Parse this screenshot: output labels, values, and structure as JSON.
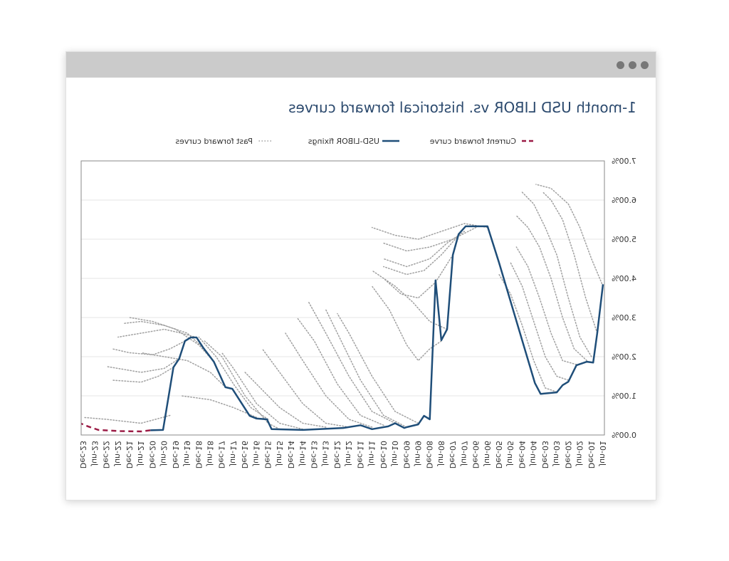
{
  "window": {
    "controls": [
      "close",
      "minimize",
      "maximize"
    ]
  },
  "chart_data": {
    "type": "line",
    "title": "1-month USD LIBOR vs. historical forward curves",
    "xlabel": "",
    "ylabel": "",
    "orientation": "mirrored-horizontally",
    "categories": [
      "Jun-01",
      "Dec-01",
      "Jun-02",
      "Dec-02",
      "Jun-03",
      "Dec-03",
      "Jun-04",
      "Dec-04",
      "Jun-05",
      "Dec-05",
      "Jun-06",
      "Dec-06",
      "Jun-07",
      "Dec-07",
      "Jun-08",
      "Dec-08",
      "Jun-09",
      "Dec-09",
      "Jun-10",
      "Dec-10",
      "Jun-11",
      "Dec-11",
      "Jun-12",
      "Dec-12",
      "Jun-13",
      "Dec-13",
      "Jun-14",
      "Dec-14",
      "Jun-15",
      "Dec-15",
      "Jun-16",
      "Dec-16",
      "Jun-17",
      "Dec-17",
      "Jun-18",
      "Dec-18",
      "Jun-19",
      "Dec-19",
      "Jun-20",
      "Dec-20",
      "Jun-21",
      "Dec-21",
      "Jun-22",
      "Dec-22",
      "Jun-23",
      "Dec-23"
    ],
    "y_ticks": [
      "0.00%",
      "1.00%",
      "2.00%",
      "3.00%",
      "4.00%",
      "5.00%",
      "6.00%",
      "7.00%"
    ],
    "ylim": [
      0,
      7
    ],
    "grid": true,
    "legend_position": "top",
    "legend": [
      "Past forward curves",
      "USD-LIBOR fixings",
      "Current forward curve"
    ],
    "colors": {
      "past": "#a0a0a0",
      "libor": "#1f4e79",
      "current": "#9b1b45"
    },
    "x_unit": "half-year index from Jun-01",
    "libor": [
      [
        0,
        3.85
      ],
      [
        0.5,
        2.6
      ],
      [
        0.85,
        1.85
      ],
      [
        1.4,
        1.87
      ],
      [
        2.3,
        1.78
      ],
      [
        3,
        1.36
      ],
      [
        3.5,
        1.27
      ],
      [
        4,
        1.09
      ],
      [
        5.4,
        1.05
      ],
      [
        5.9,
        1.33
      ],
      [
        9,
        4.4
      ],
      [
        10,
        5.33
      ],
      [
        11.9,
        5.33
      ],
      [
        12.5,
        5.13
      ],
      [
        13,
        4.6
      ],
      [
        13.5,
        2.7
      ],
      [
        14,
        2.42
      ],
      [
        14.5,
        3.95
      ],
      [
        15,
        0.4
      ],
      [
        15.5,
        0.49
      ],
      [
        16,
        0.27
      ],
      [
        17,
        0.2
      ],
      [
        17.2,
        0.18
      ],
      [
        18,
        0.3
      ],
      [
        18.6,
        0.22
      ],
      [
        20,
        0.15
      ],
      [
        21,
        0.25
      ],
      [
        22.5,
        0.18
      ],
      [
        26,
        0.13
      ],
      [
        28.7,
        0.15
      ],
      [
        29.1,
        0.4
      ],
      [
        30,
        0.42
      ],
      [
        30.6,
        0.49
      ],
      [
        32.1,
        1.18
      ],
      [
        32.7,
        1.22
      ],
      [
        33.7,
        1.87
      ],
      [
        34.6,
        2.22
      ],
      [
        35.2,
        2.49
      ],
      [
        35.7,
        2.49
      ],
      [
        36.2,
        2.4
      ],
      [
        36.7,
        1.95
      ],
      [
        37.2,
        1.73
      ],
      [
        38.1,
        0.13
      ],
      [
        39.2,
        0.12
      ]
    ],
    "current_forward": [
      [
        39.2,
        0.12
      ],
      [
        40,
        0.09
      ],
      [
        41.8,
        0.1
      ],
      [
        43.7,
        0.13
      ],
      [
        44.6,
        0.22
      ],
      [
        45.2,
        0.29
      ]
    ],
    "past_forward": [
      [
        [
          0,
          3.8
        ],
        [
          1,
          4.5
        ],
        [
          2,
          5.3
        ],
        [
          3,
          5.9
        ],
        [
          4.5,
          6.3
        ],
        [
          5.8,
          6.4
        ]
      ],
      [
        [
          0.5,
          2.6
        ],
        [
          1.5,
          3.5
        ],
        [
          2.5,
          4.6
        ],
        [
          3.5,
          5.5
        ],
        [
          4.5,
          6.0
        ],
        [
          5.2,
          6.2
        ]
      ],
      [
        [
          1,
          2.0
        ],
        [
          2,
          2.5
        ],
        [
          3,
          3.5
        ],
        [
          4,
          4.6
        ],
        [
          5,
          5.3
        ],
        [
          6,
          5.9
        ],
        [
          7,
          6.2
        ]
      ],
      [
        [
          1.4,
          1.9
        ],
        [
          2.5,
          2.2
        ],
        [
          3.5,
          3.0
        ],
        [
          4.5,
          4.0
        ],
        [
          5.5,
          4.8
        ],
        [
          6.5,
          5.3
        ],
        [
          7.5,
          5.6
        ]
      ],
      [
        [
          2.3,
          1.8
        ],
        [
          3.5,
          1.9
        ],
        [
          4.5,
          2.6
        ],
        [
          5.5,
          3.5
        ],
        [
          6.5,
          4.3
        ],
        [
          7.5,
          4.8
        ]
      ],
      [
        [
          3,
          1.4
        ],
        [
          4,
          1.5
        ],
        [
          5,
          2.0
        ],
        [
          6,
          2.9
        ],
        [
          7,
          3.8
        ],
        [
          8,
          4.4
        ]
      ],
      [
        [
          4,
          1.1
        ],
        [
          5,
          1.2
        ],
        [
          6,
          1.9
        ],
        [
          7,
          2.8
        ],
        [
          8,
          3.6
        ],
        [
          9,
          4.1
        ]
      ],
      [
        [
          10,
          5.3
        ],
        [
          12,
          5.4
        ],
        [
          14,
          5.2
        ],
        [
          16,
          5.0
        ],
        [
          18,
          5.1
        ],
        [
          20,
          5.3
        ]
      ],
      [
        [
          11,
          5.3
        ],
        [
          13,
          5.0
        ],
        [
          15,
          4.8
        ],
        [
          17,
          4.7
        ],
        [
          19,
          4.9
        ]
      ],
      [
        [
          12,
          5.2
        ],
        [
          13.5,
          4.9
        ],
        [
          15,
          4.5
        ],
        [
          17,
          4.3
        ],
        [
          19,
          4.5
        ]
      ],
      [
        [
          12.5,
          5.1
        ],
        [
          14,
          4.6
        ],
        [
          15.5,
          4.2
        ],
        [
          17,
          4.1
        ],
        [
          19,
          4.3
        ]
      ],
      [
        [
          13,
          4.6
        ],
        [
          14.5,
          3.9
        ],
        [
          16,
          3.5
        ],
        [
          17.5,
          3.6
        ],
        [
          19,
          4.0
        ]
      ],
      [
        [
          13.5,
          2.7
        ],
        [
          15,
          2.9
        ],
        [
          16.5,
          3.4
        ],
        [
          18,
          3.8
        ],
        [
          20,
          4.2
        ]
      ],
      [
        [
          14,
          2.4
        ],
        [
          15,
          2.2
        ],
        [
          16,
          1.9
        ],
        [
          17,
          2.3
        ],
        [
          18.5,
          3.2
        ],
        [
          20,
          3.8
        ]
      ],
      [
        [
          16,
          0.3
        ],
        [
          18,
          0.6
        ],
        [
          20,
          1.5
        ],
        [
          22,
          2.6
        ],
        [
          23,
          3.1
        ]
      ],
      [
        [
          17,
          0.2
        ],
        [
          19,
          0.5
        ],
        [
          21,
          1.4
        ],
        [
          23,
          2.6
        ],
        [
          24,
          3.2
        ]
      ],
      [
        [
          18,
          0.3
        ],
        [
          20,
          0.6
        ],
        [
          22,
          1.5
        ],
        [
          24,
          2.6
        ],
        [
          25.5,
          3.4
        ]
      ],
      [
        [
          19,
          0.25
        ],
        [
          21,
          0.5
        ],
        [
          23,
          1.3
        ],
        [
          25,
          2.4
        ],
        [
          26.5,
          3.0
        ]
      ],
      [
        [
          20,
          0.2
        ],
        [
          22,
          0.4
        ],
        [
          24,
          1.0
        ],
        [
          26,
          1.9
        ],
        [
          27.5,
          2.6
        ]
      ],
      [
        [
          22,
          0.2
        ],
        [
          24,
          0.3
        ],
        [
          26,
          0.8
        ],
        [
          28,
          1.6
        ],
        [
          29.5,
          2.2
        ]
      ],
      [
        [
          24,
          0.2
        ],
        [
          26,
          0.3
        ],
        [
          28,
          0.7
        ],
        [
          30,
          1.3
        ],
        [
          31,
          1.6
        ]
      ],
      [
        [
          26,
          0.15
        ],
        [
          28,
          0.3
        ],
        [
          30,
          0.8
        ],
        [
          32,
          1.7
        ],
        [
          33,
          2.1
        ]
      ],
      [
        [
          28,
          0.15
        ],
        [
          29,
          0.3
        ],
        [
          31,
          1.0
        ],
        [
          33,
          2.0
        ],
        [
          34.5,
          2.4
        ]
      ],
      [
        [
          29,
          0.4
        ],
        [
          30.5,
          0.7
        ],
        [
          32,
          1.3
        ],
        [
          33.5,
          2.0
        ],
        [
          35,
          2.5
        ]
      ],
      [
        [
          30,
          0.45
        ],
        [
          32,
          0.7
        ],
        [
          34,
          0.9
        ],
        [
          36.5,
          1.0
        ]
      ],
      [
        [
          32.7,
          1.22
        ],
        [
          34,
          1.6
        ],
        [
          36,
          1.9
        ],
        [
          38,
          2.0
        ],
        [
          40,
          2.1
        ]
      ],
      [
        [
          33.7,
          1.87
        ],
        [
          35,
          2.3
        ],
        [
          37,
          2.7
        ],
        [
          39,
          2.9
        ],
        [
          41,
          3.0
        ]
      ],
      [
        [
          34.6,
          2.22
        ],
        [
          36,
          2.6
        ],
        [
          38,
          2.8
        ],
        [
          40,
          2.9
        ],
        [
          41.5,
          2.85
        ]
      ],
      [
        [
          35.2,
          2.49
        ],
        [
          36.5,
          2.6
        ],
        [
          38,
          2.7
        ],
        [
          40,
          2.6
        ],
        [
          42,
          2.5
        ]
      ],
      [
        [
          36.2,
          2.4
        ],
        [
          37.5,
          2.2
        ],
        [
          39,
          2.05
        ],
        [
          41,
          2.1
        ],
        [
          42.5,
          2.2
        ]
      ],
      [
        [
          36.7,
          1.95
        ],
        [
          38,
          1.7
        ],
        [
          40,
          1.6
        ],
        [
          42,
          1.7
        ],
        [
          43,
          1.75
        ]
      ],
      [
        [
          37.2,
          1.73
        ],
        [
          38.5,
          1.5
        ],
        [
          40,
          1.35
        ],
        [
          42.5,
          1.4
        ]
      ],
      [
        [
          37.5,
          0.5
        ],
        [
          40,
          0.3
        ],
        [
          43,
          0.4
        ],
        [
          45,
          0.45
        ]
      ]
    ]
  }
}
